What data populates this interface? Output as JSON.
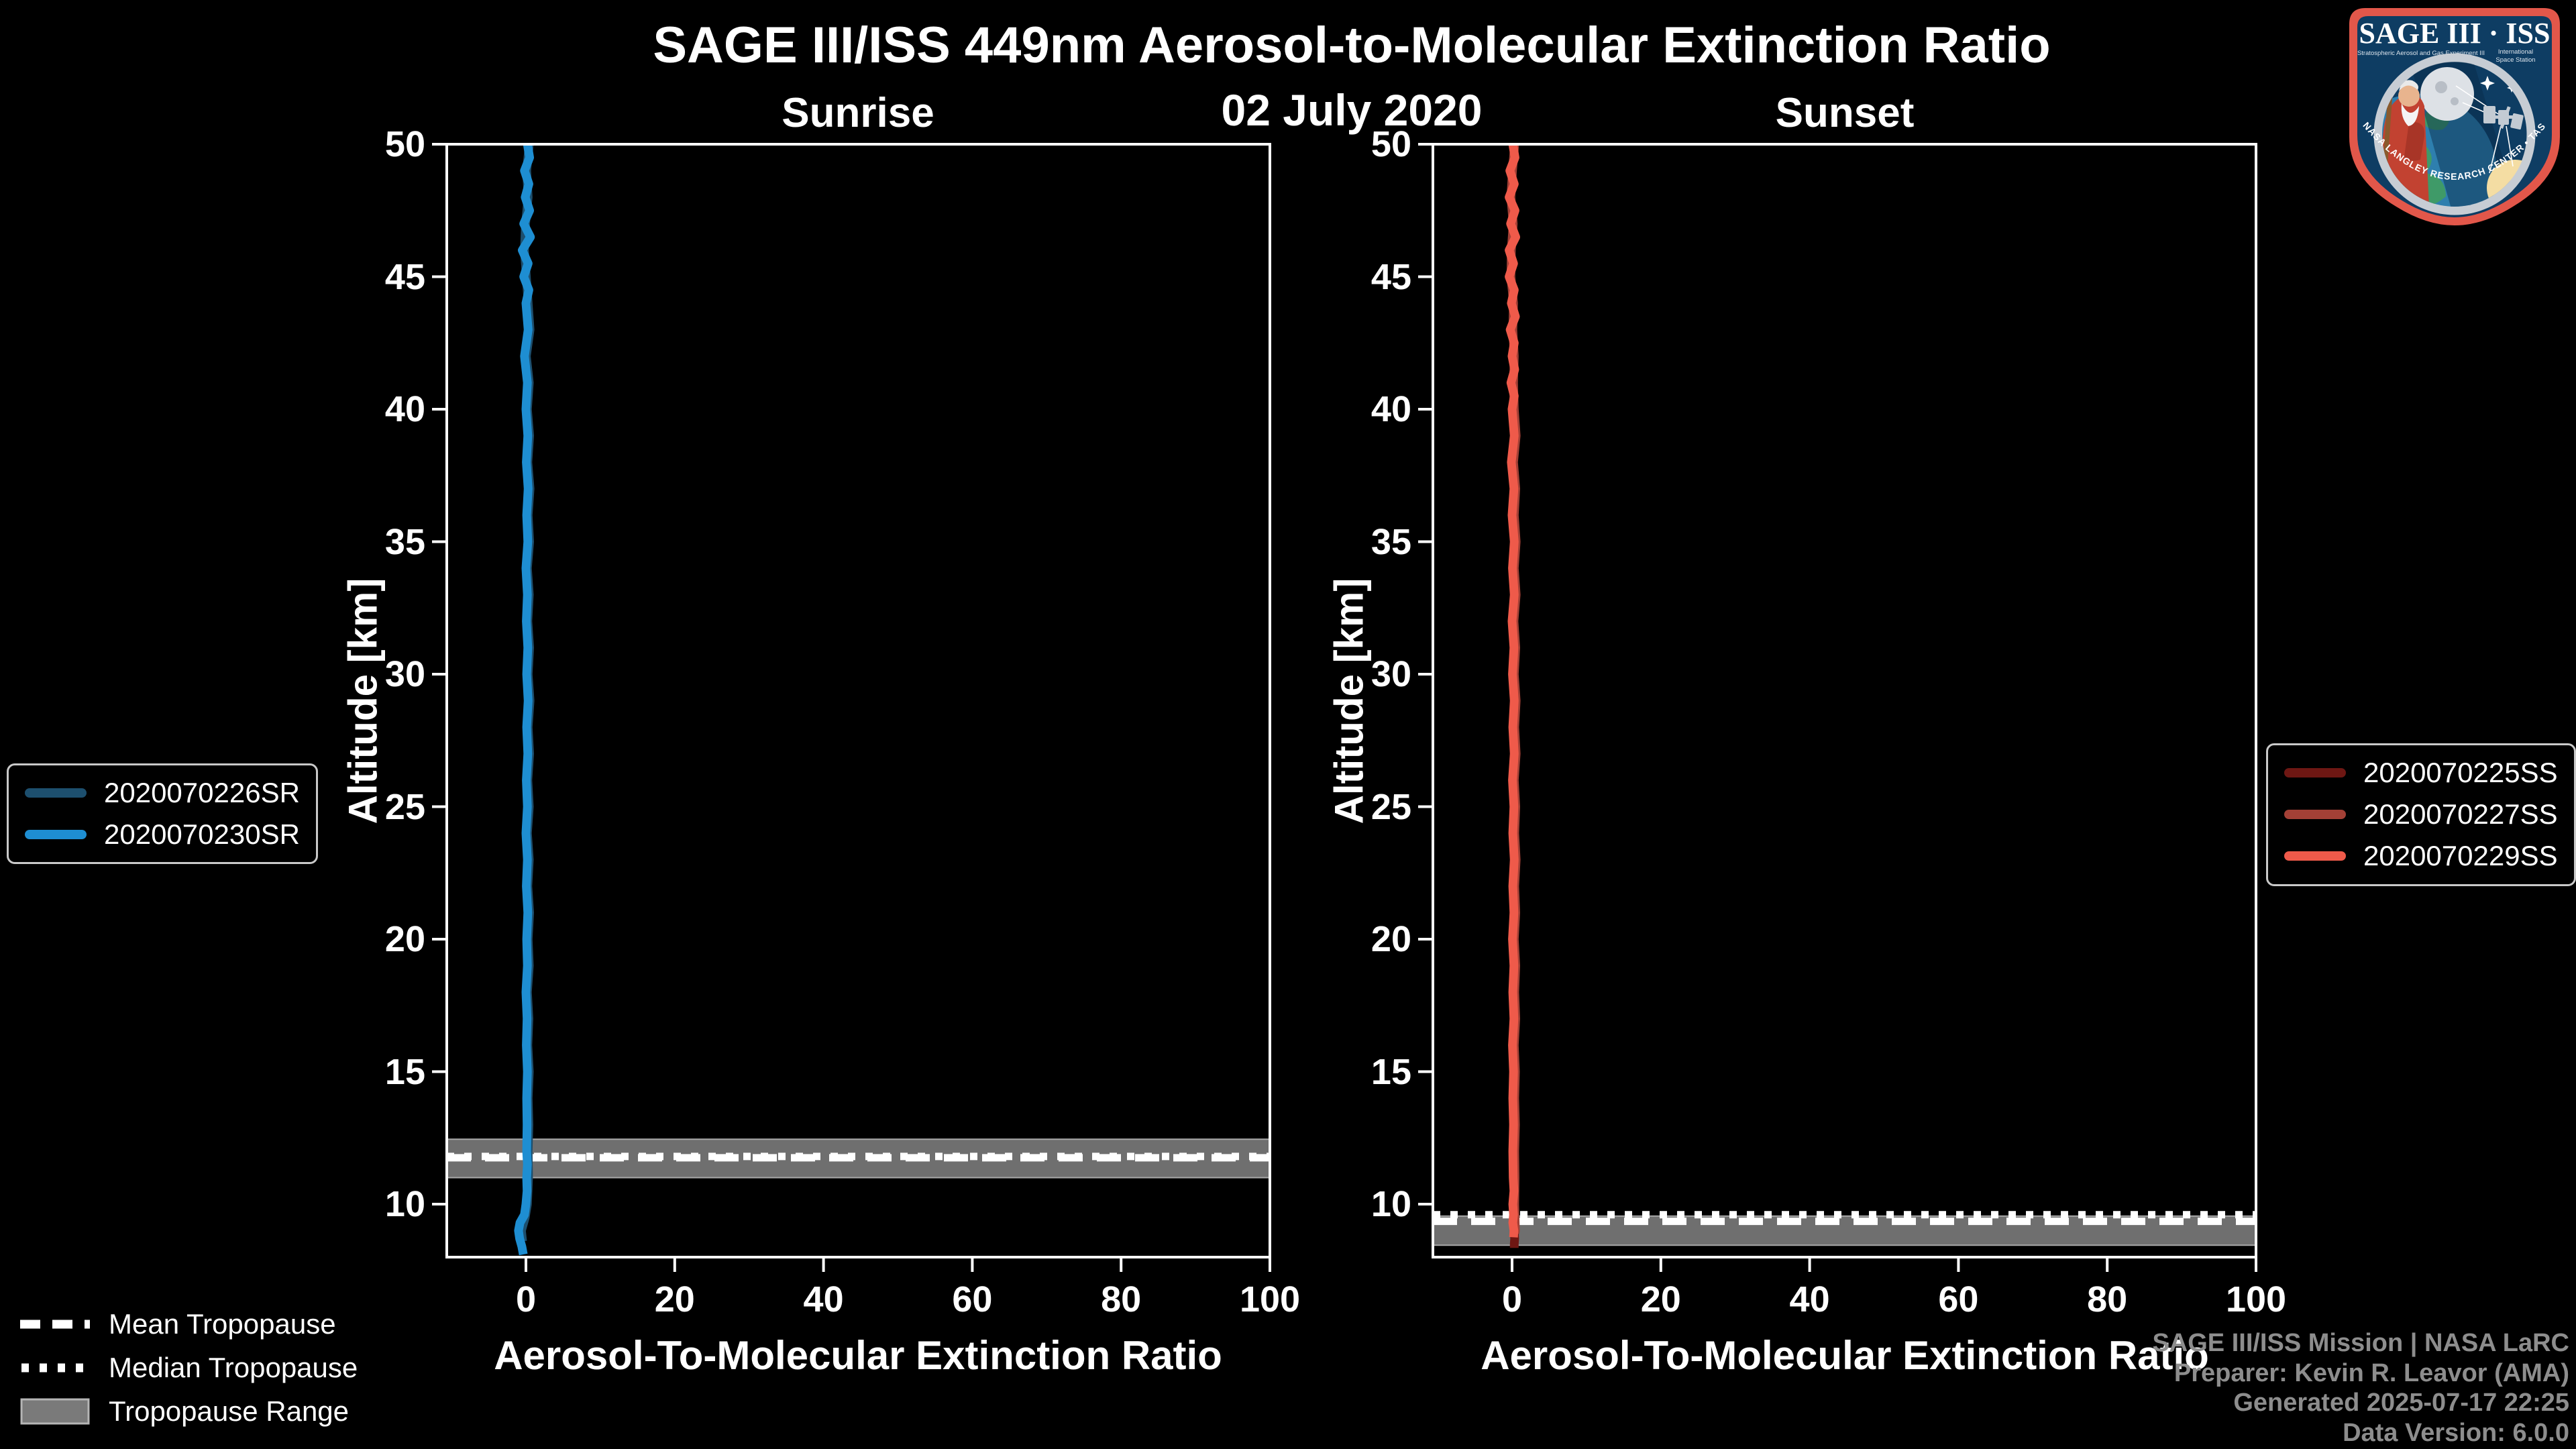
{
  "header": {
    "title": "SAGE III/ISS 449nm Aerosol-to-Molecular Extinction Ratio",
    "subtitle": "02 July 2020"
  },
  "colors": {
    "background": "#000000",
    "axis": "#ffffff",
    "band": "#6f6f6f",
    "band_edge": "#a8a8a8",
    "legend_border": "#c9c9c9",
    "credits_text": "#8d8d8d",
    "sunrise_dark": "#1d4f6e",
    "sunrise_bright": "#1e8ed2",
    "sunset_dark": "#6e1713",
    "sunset_mid": "#a34036",
    "sunset_bright": "#ef5a4a"
  },
  "legends": {
    "sunrise": {
      "items": [
        {
          "label": "2020070226SR",
          "color": "#1d4f6e"
        },
        {
          "label": "2020070230SR",
          "color": "#1e8ed2"
        }
      ]
    },
    "sunset": {
      "items": [
        {
          "label": "2020070225SS",
          "color": "#6e1713"
        },
        {
          "label": "2020070227SS",
          "color": "#a34036"
        },
        {
          "label": "2020070229SS",
          "color": "#ef5a4a"
        }
      ]
    },
    "tropopause": {
      "items": [
        {
          "label": "Mean Tropopause",
          "style": "dashed"
        },
        {
          "label": "Median Tropopause",
          "style": "dotted"
        },
        {
          "label": "Tropopause Range",
          "style": "band"
        }
      ]
    }
  },
  "credits": [
    "SAGE III/ISS Mission | NASA LaRC",
    "Preparer: Kevin R. Leavor (AMA)",
    "Generated 2025-07-17 22:25",
    "Data Version: 6.0.0"
  ],
  "logo": {
    "title": "SAGE III · ISS",
    "subtitle_left": "Stratospheric Aerosol and Gas Experiment III",
    "subtitle_right_1": "International",
    "subtitle_right_2": "Space Station",
    "rim_text": "BALL  •  NASA LANGLEY RESEARCH CENTER  •  TAS-I  •  ESA"
  },
  "chart_data": [
    {
      "type": "line",
      "title": "Sunrise",
      "xlabel": "Aerosol-To-Molecular Extinction Ratio",
      "ylabel": "Altitude [km]",
      "xlim": [
        -10.64,
        100
      ],
      "ylim": [
        8,
        50
      ],
      "xticks": [
        0,
        20,
        40,
        60,
        80,
        100
      ],
      "yticks": [
        10,
        15,
        20,
        25,
        30,
        35,
        40,
        45,
        50
      ],
      "grid": false,
      "legend_position": "outside-left",
      "tropopause": {
        "band": [
          11.0,
          12.45
        ],
        "mean": 11.75,
        "median": 11.8
      },
      "series": [
        {
          "name": "2020070226SR",
          "color": "#1d4f6e",
          "points": [
            [
              50,
              0.45
            ],
            [
              49,
              0.1
            ],
            [
              48,
              0.3
            ],
            [
              47,
              -0.05
            ],
            [
              46,
              -0.2
            ],
            [
              45,
              0.05
            ],
            [
              44,
              0.3
            ],
            [
              43,
              0.55
            ],
            [
              42,
              0.05
            ],
            [
              41,
              0.45
            ],
            [
              40,
              0.2
            ],
            [
              39,
              0.5
            ],
            [
              38,
              0.25
            ],
            [
              37,
              0.55
            ],
            [
              36,
              0.3
            ],
            [
              35,
              0.5
            ],
            [
              34,
              0.2
            ],
            [
              33,
              0.45
            ],
            [
              32,
              0.25
            ],
            [
              31,
              0.5
            ],
            [
              30,
              0.3
            ],
            [
              29,
              0.55
            ],
            [
              28,
              0.3
            ],
            [
              27,
              0.5
            ],
            [
              26,
              0.25
            ],
            [
              25,
              0.45
            ],
            [
              24,
              0.2
            ],
            [
              23,
              0.45
            ],
            [
              22,
              0.25
            ],
            [
              21,
              0.5
            ],
            [
              20,
              0.3
            ],
            [
              19,
              0.45
            ],
            [
              18,
              0.2
            ],
            [
              17,
              0.4
            ],
            [
              16,
              0.25
            ],
            [
              15,
              0.45
            ],
            [
              14,
              0.3
            ],
            [
              13,
              0.4
            ],
            [
              12,
              0.3
            ],
            [
              11,
              0.35
            ],
            [
              10,
              0.2
            ],
            [
              9.5,
              -0.1
            ],
            [
              9,
              -0.6
            ],
            [
              8.6,
              -0.45
            ]
          ]
        },
        {
          "name": "2020070230SR",
          "color": "#1e8ed2",
          "points": [
            [
              50,
              0.2
            ],
            [
              49.5,
              0.5
            ],
            [
              49,
              -0.2
            ],
            [
              48.5,
              0.4
            ],
            [
              48,
              -0.1
            ],
            [
              47.5,
              0.5
            ],
            [
              47,
              -0.3
            ],
            [
              46.5,
              0.6
            ],
            [
              46,
              -0.5
            ],
            [
              45.5,
              0.3
            ],
            [
              45,
              -0.3
            ],
            [
              44.5,
              0.4
            ],
            [
              44,
              0
            ],
            [
              43,
              0.3
            ],
            [
              42,
              -0.2
            ],
            [
              41,
              0.2
            ],
            [
              40,
              0
            ],
            [
              39,
              0.25
            ],
            [
              38,
              0.05
            ],
            [
              37,
              0.3
            ],
            [
              36,
              0.1
            ],
            [
              35,
              0.25
            ],
            [
              34,
              0
            ],
            [
              33,
              0.2
            ],
            [
              32,
              0.05
            ],
            [
              31,
              0.25
            ],
            [
              30,
              0.1
            ],
            [
              29,
              0.3
            ],
            [
              28,
              0.1
            ],
            [
              27,
              0.25
            ],
            [
              26,
              0.05
            ],
            [
              25,
              0.2
            ],
            [
              24,
              0
            ],
            [
              23,
              0.2
            ],
            [
              22,
              0.05
            ],
            [
              21,
              0.25
            ],
            [
              20,
              0.1
            ],
            [
              19,
              0.2
            ],
            [
              18,
              0
            ],
            [
              17,
              0.15
            ],
            [
              16,
              0.05
            ],
            [
              15,
              0.2
            ],
            [
              14,
              0.1
            ],
            [
              13,
              0.15
            ],
            [
              12,
              0.1
            ],
            [
              11.5,
              0.2
            ],
            [
              11,
              0.1
            ],
            [
              10.5,
              0.15
            ],
            [
              10,
              0
            ],
            [
              9.6,
              -0.2
            ],
            [
              9.3,
              -0.8
            ],
            [
              9,
              -1.0
            ],
            [
              8.7,
              -0.85
            ],
            [
              8.4,
              -0.55
            ],
            [
              8.1,
              -0.35
            ]
          ]
        }
      ]
    },
    {
      "type": "line",
      "title": "Sunset",
      "xlabel": "Aerosol-To-Molecular Extinction Ratio",
      "ylabel": "Altitude [km]",
      "xlim": [
        -10.64,
        100
      ],
      "ylim": [
        8,
        50
      ],
      "xticks": [
        0,
        20,
        40,
        60,
        80,
        100
      ],
      "yticks": [
        10,
        15,
        20,
        25,
        30,
        35,
        40,
        45,
        50
      ],
      "grid": false,
      "legend_position": "outside-right",
      "tropopause": {
        "band": [
          8.45,
          9.55
        ],
        "mean": 9.35,
        "median": 9.6
      },
      "series": [
        {
          "name": "2020070225SS",
          "color": "#6e1713",
          "points": [
            [
              9.9,
              0.2
            ],
            [
              9.6,
              0.3
            ],
            [
              9.3,
              0.35
            ],
            [
              9,
              0.3
            ],
            [
              8.7,
              0.35
            ],
            [
              8.5,
              0.3
            ],
            [
              8.35,
              0.3
            ]
          ]
        },
        {
          "name": "2020070227SS",
          "color": "#a34036",
          "points": [
            [
              50,
              0.35
            ],
            [
              49,
              0.05
            ],
            [
              48,
              -0.15
            ],
            [
              47,
              0.15
            ],
            [
              46,
              -0.1
            ],
            [
              45,
              -0.15
            ],
            [
              44,
              0.2
            ],
            [
              43,
              0.1
            ],
            [
              42,
              0.3
            ],
            [
              41,
              0.2
            ],
            [
              40,
              0.3
            ],
            [
              39,
              0.55
            ],
            [
              38,
              0.2
            ],
            [
              37,
              0.5
            ],
            [
              36,
              0.3
            ],
            [
              35,
              0.55
            ],
            [
              34,
              0.3
            ],
            [
              33,
              0.55
            ],
            [
              32,
              0.25
            ],
            [
              31,
              0.5
            ],
            [
              30,
              0.3
            ],
            [
              29,
              0.55
            ],
            [
              28,
              0.35
            ],
            [
              27,
              0.55
            ],
            [
              26,
              0.3
            ],
            [
              25,
              0.5
            ],
            [
              24,
              0.35
            ],
            [
              23,
              0.55
            ],
            [
              22,
              0.35
            ],
            [
              21,
              0.5
            ],
            [
              20,
              0.3
            ],
            [
              19,
              0.5
            ],
            [
              18,
              0.35
            ],
            [
              17,
              0.5
            ],
            [
              16,
              0.3
            ],
            [
              15,
              0.45
            ],
            [
              14,
              0.35
            ],
            [
              13,
              0.45
            ],
            [
              12,
              0.35
            ],
            [
              11,
              0.4
            ],
            [
              10,
              0.35
            ],
            [
              9.5,
              0.4
            ],
            [
              9,
              0.45
            ],
            [
              8.9,
              0.4
            ]
          ]
        },
        {
          "name": "2020070229SS",
          "color": "#ef5a4a",
          "points": [
            [
              50,
              0.1
            ],
            [
              49.5,
              0.4
            ],
            [
              49,
              -0.3
            ],
            [
              48.5,
              0.3
            ],
            [
              48,
              -0.4
            ],
            [
              47.5,
              0.4
            ],
            [
              47,
              -0.2
            ],
            [
              46.5,
              0.5
            ],
            [
              46,
              -0.4
            ],
            [
              45.5,
              0.2
            ],
            [
              45,
              -0.4
            ],
            [
              44.5,
              0.3
            ],
            [
              44,
              -0.1
            ],
            [
              43.5,
              0.45
            ],
            [
              43,
              -0.25
            ],
            [
              42.5,
              0.3
            ],
            [
              42,
              0
            ],
            [
              41.5,
              0.35
            ],
            [
              41,
              -0.15
            ],
            [
              40.5,
              0.3
            ],
            [
              40,
              0
            ],
            [
              39,
              0.3
            ],
            [
              38,
              -0.1
            ],
            [
              37,
              0.25
            ],
            [
              36,
              0
            ],
            [
              35,
              0.3
            ],
            [
              34,
              0.05
            ],
            [
              33,
              0.3
            ],
            [
              32,
              0
            ],
            [
              31,
              0.25
            ],
            [
              30,
              0.05
            ],
            [
              29,
              0.3
            ],
            [
              28,
              0.1
            ],
            [
              27,
              0.3
            ],
            [
              26,
              0.05
            ],
            [
              25,
              0.25
            ],
            [
              24,
              0.1
            ],
            [
              23,
              0.3
            ],
            [
              22,
              0.1
            ],
            [
              21,
              0.25
            ],
            [
              20,
              0.05
            ],
            [
              19,
              0.25
            ],
            [
              18,
              0.1
            ],
            [
              17,
              0.25
            ],
            [
              16,
              0.05
            ],
            [
              15,
              0.2
            ],
            [
              14,
              0.1
            ],
            [
              13,
              0.2
            ],
            [
              12,
              0.1
            ],
            [
              11,
              0.15
            ],
            [
              10.5,
              0.25
            ],
            [
              10,
              0.1
            ],
            [
              9.6,
              0.2
            ],
            [
              9.3,
              0.1
            ],
            [
              9,
              0.25
            ],
            [
              8.75,
              0.2
            ]
          ]
        }
      ]
    }
  ]
}
